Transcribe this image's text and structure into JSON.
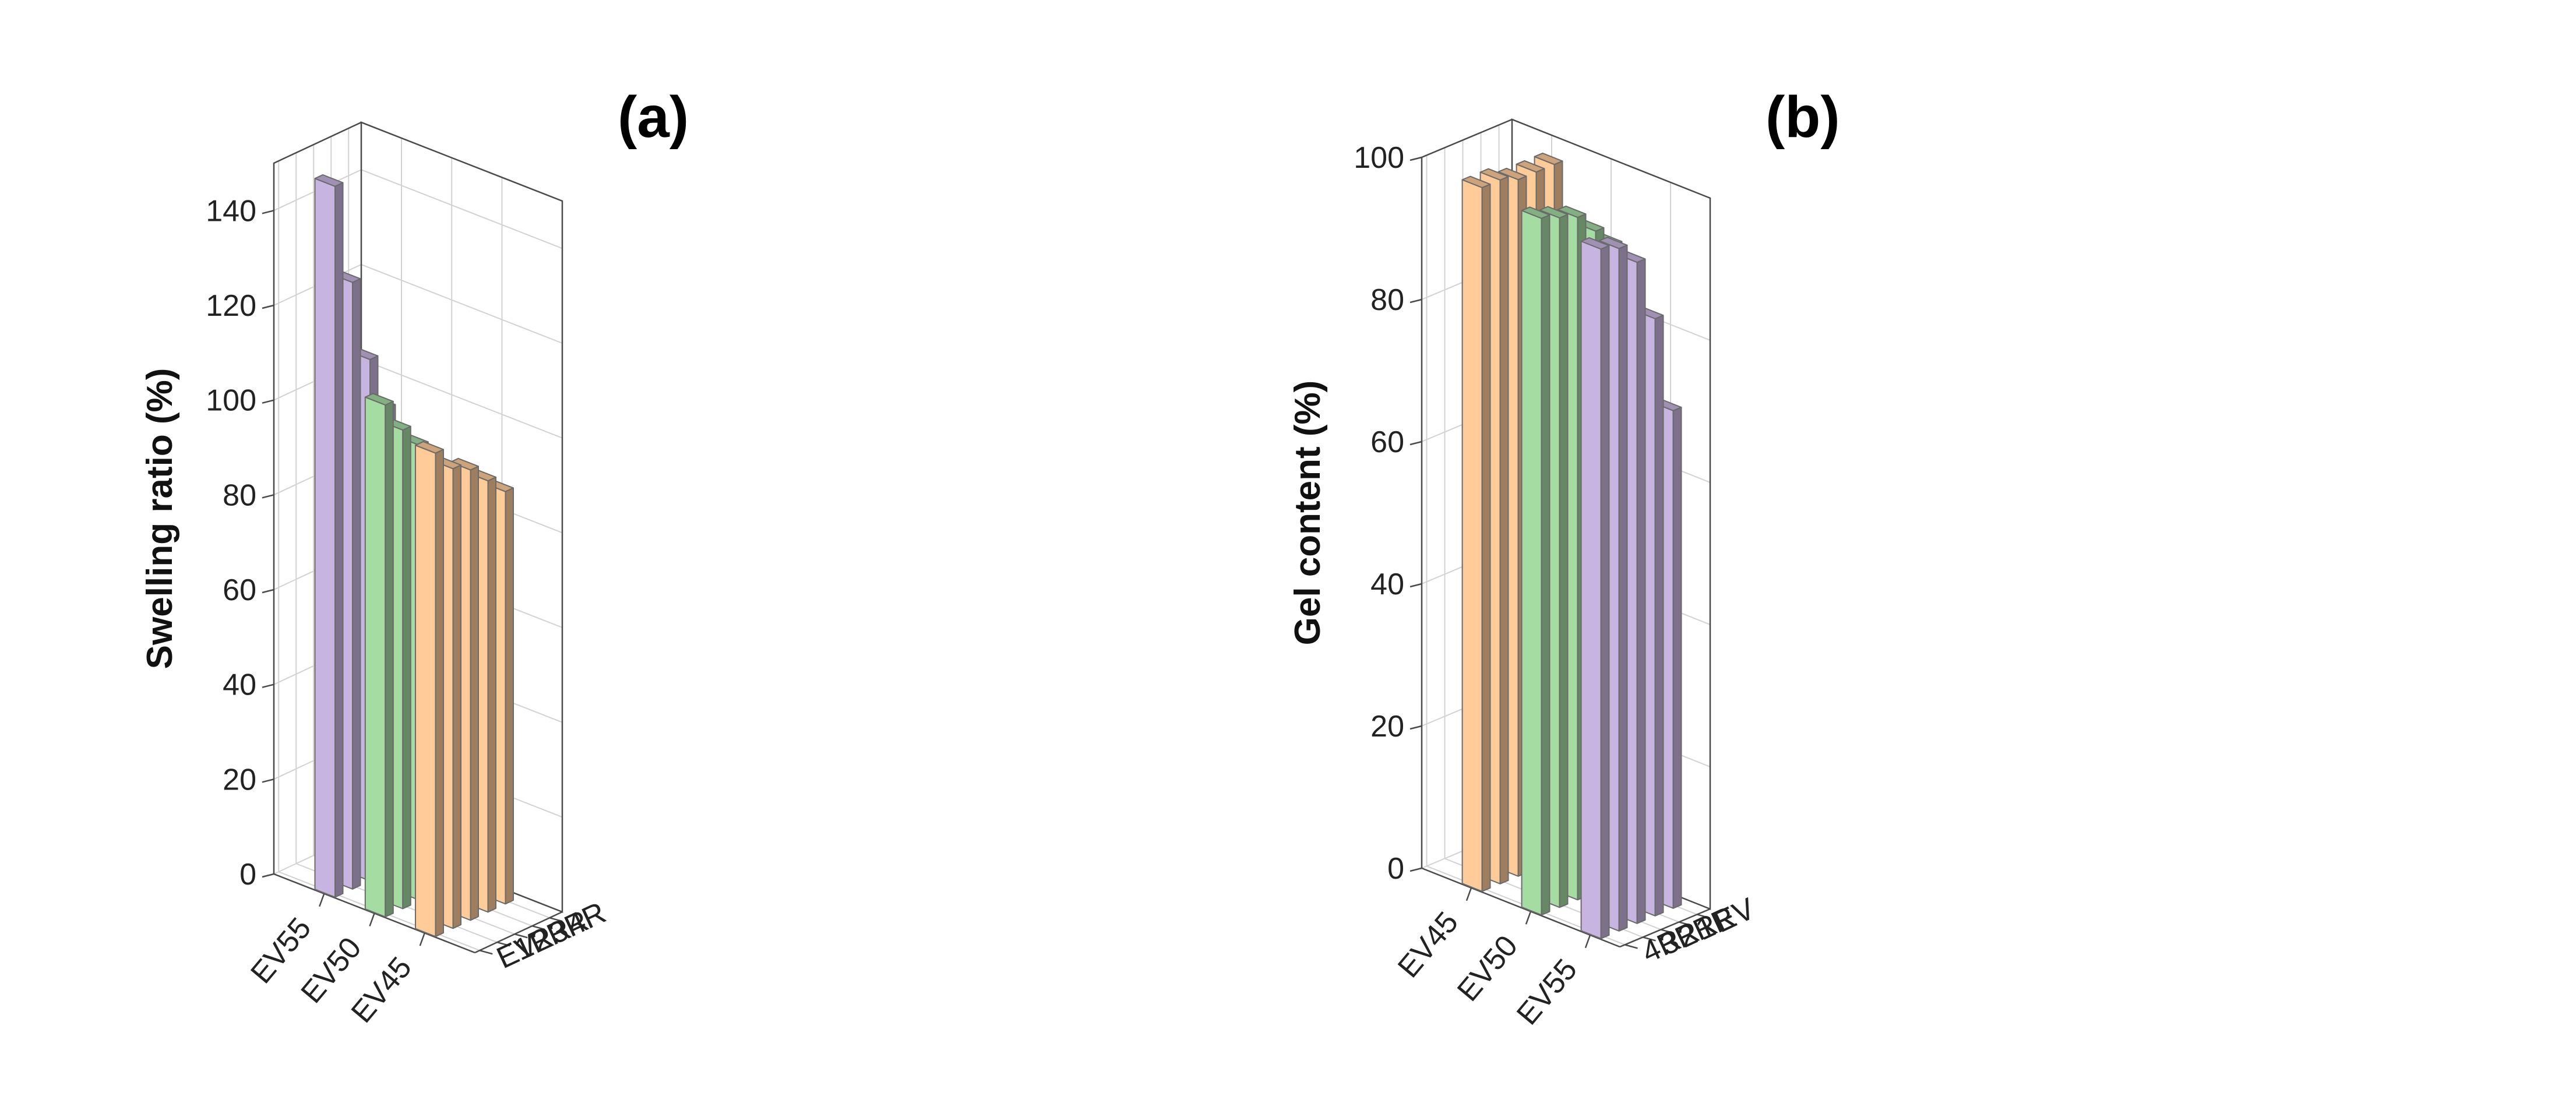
{
  "chart_data": [
    {
      "type": "bar",
      "panel_label": "(a)",
      "ylabel": "Swelling ratio (%)",
      "ylim": [
        0,
        150
      ],
      "yticks": [
        0,
        20,
        40,
        60,
        80,
        100,
        120,
        140
      ],
      "groups": [
        "EV55",
        "EV50",
        "EV45"
      ],
      "depth_categories": [
        "4R",
        "3R",
        "2R",
        "1R",
        "EV"
      ],
      "colors": {
        "EV55": "#c8b4e0",
        "EV50": "#a4dca2",
        "EV45": "#ffcc99"
      },
      "series": [
        {
          "name": "EV55",
          "values": [
            82,
            98,
            110,
            128,
            150
          ]
        },
        {
          "name": "EV50",
          "values": [
            80,
            89,
            96,
            101,
            108
          ]
        },
        {
          "name": "EV45",
          "values": [
            87,
            91,
            95,
            97,
            102
          ]
        }
      ]
    },
    {
      "type": "bar",
      "panel_label": "(b)",
      "ylabel": "Gel content (%)",
      "ylim": [
        0,
        100
      ],
      "yticks": [
        0,
        20,
        40,
        60,
        80,
        100
      ],
      "groups": [
        "EV45",
        "EV50",
        "EV55"
      ],
      "depth_categories": [
        "EV",
        "1R",
        "2R",
        "3R",
        "4R"
      ],
      "colors": {
        "EV45": "#ffcc99",
        "EV50": "#a4dca2",
        "EV55": "#c8b4e0"
      },
      "series": [
        {
          "name": "EV45",
          "values": [
            98,
            98,
            98,
            99,
            99
          ]
        },
        {
          "name": "EV50",
          "values": [
            90,
            93,
            96,
            97,
            98
          ]
        },
        {
          "name": "EV55",
          "values": [
            70,
            84,
            93,
            96,
            97
          ]
        }
      ]
    }
  ]
}
